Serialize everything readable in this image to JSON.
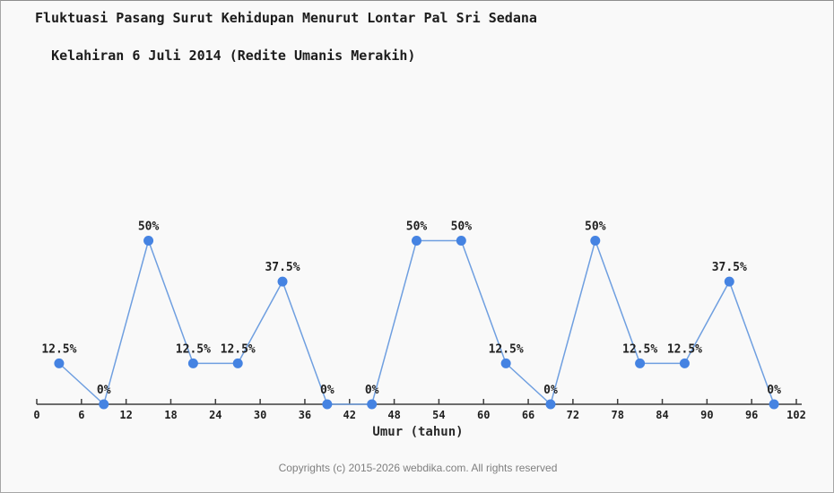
{
  "chart_data": {
    "type": "line",
    "title_line1": "Fluktuasi Pasang Surut Kehidupan Menurut Lontar Pal Sri Sedana",
    "title_line2": "Kelahiran 6 Juli 2014 (Redite Umanis Merakih)",
    "xlabel": "Umur (tahun)",
    "x": [
      3,
      9,
      15,
      21,
      27,
      33,
      39,
      45,
      51,
      57,
      63,
      69,
      75,
      81,
      87,
      93,
      99
    ],
    "values": [
      12.5,
      0,
      50,
      12.5,
      12.5,
      37.5,
      0,
      0,
      50,
      50,
      12.5,
      0,
      50,
      12.5,
      12.5,
      37.5,
      0
    ],
    "point_labels": [
      "12.5%",
      "0%",
      "50%",
      "12.5%",
      "12.5%",
      "37.5%",
      "0%",
      "0%",
      "50%",
      "50%",
      "12.5%",
      "0%",
      "50%",
      "12.5%",
      "12.5%",
      "37.5%",
      "0%"
    ],
    "x_ticks": [
      0,
      6,
      12,
      18,
      24,
      30,
      36,
      42,
      48,
      54,
      60,
      66,
      72,
      78,
      84,
      90,
      96,
      102
    ],
    "xlim": [
      0,
      102
    ],
    "ylim": [
      0,
      55
    ],
    "grid": false,
    "legend": "none",
    "y_axis_shown": false,
    "line_color": "#6f9fe0",
    "marker_color": "#4583e2",
    "axis_color": "#3d3d3d",
    "label_color": "#1f1f1f"
  },
  "footer": {
    "copyright": "Copyrights (c) 2015-2026 webdika.com. All rights reserved"
  }
}
